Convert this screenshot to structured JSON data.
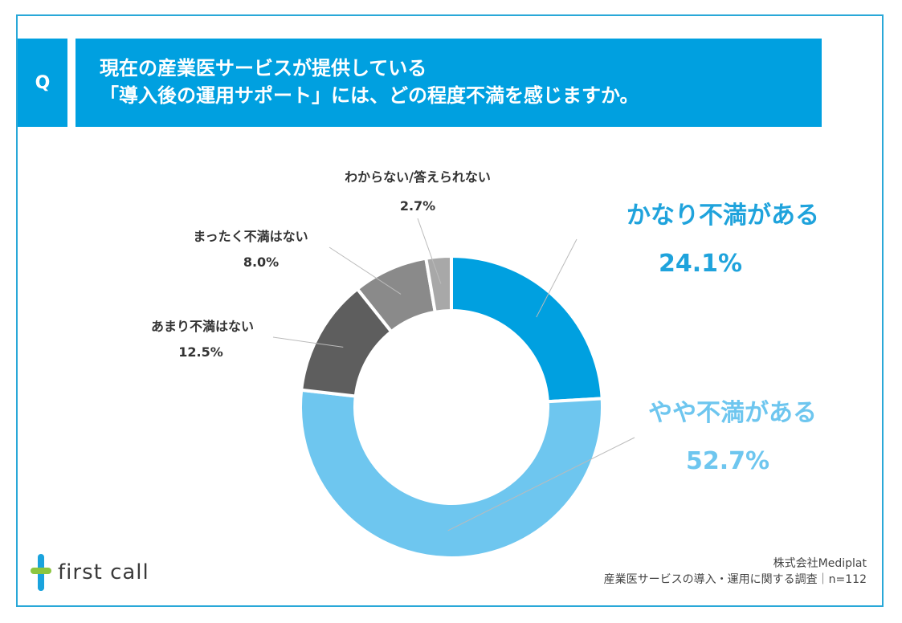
{
  "question": {
    "badge": "Q",
    "line1": "現在の産業医サービスが提供している",
    "line2": "「導入後の運用サポート」には、どの程度不満を感じますか。"
  },
  "colors": {
    "accent": "#00a0e0",
    "frame": "#29a8d8"
  },
  "chart_data": {
    "type": "pie",
    "style": "donut",
    "series": [
      {
        "name": "かなり不満がある",
        "value": 24.1,
        "value_label": "24.1%",
        "color": "#00a0e0",
        "label_color": "#1fa3dc",
        "emphasis": true
      },
      {
        "name": "やや不満がある",
        "value": 52.7,
        "value_label": "52.7%",
        "color": "#6ec6ef",
        "label_color": "#6ec6ef",
        "emphasis": true
      },
      {
        "name": "あまり不満はない",
        "value": 12.5,
        "value_label": "12.5%",
        "color": "#5e5e5e",
        "label_color": "#333333",
        "emphasis": false
      },
      {
        "name": "まったく不満はない",
        "value": 8.0,
        "value_label": "8.0%",
        "color": "#8a8a8a",
        "label_color": "#333333",
        "emphasis": false
      },
      {
        "name": "わからない/答えられない",
        "value": 2.7,
        "value_label": "2.7%",
        "color": "#a8a8a8",
        "label_color": "#333333",
        "emphasis": false
      }
    ]
  },
  "footer": {
    "logo_text": "first call",
    "source_line1": "株式会社Mediplat",
    "source_line2": "産業医サービスの導入・運用に関する調査｜n=112"
  }
}
